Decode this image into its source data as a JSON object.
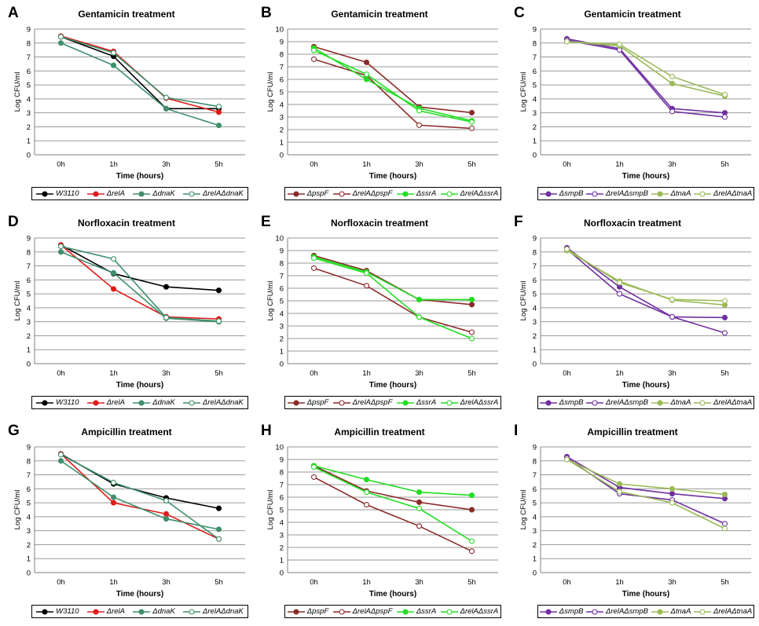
{
  "chart_data": [
    {
      "panel": "A",
      "type": "line",
      "title": "Gentamicin treatment",
      "xlabel": "Time (hours)",
      "ylabel": "Log CFU/ml",
      "categories": [
        "0h",
        "1h",
        "3h",
        "5h"
      ],
      "ylim": [
        0,
        9
      ],
      "yticks": [
        0,
        1,
        2,
        3,
        4,
        5,
        6,
        7,
        8,
        9
      ],
      "grid": true,
      "legend": "bottom",
      "series": [
        {
          "name": "W3110",
          "color": "#000000",
          "marker": "filled",
          "values": [
            8.45,
            7.05,
            3.3,
            3.3
          ]
        },
        {
          "name": "ΔrelA",
          "color": "#e01b1b",
          "marker": "filled",
          "values": [
            8.5,
            7.4,
            4.05,
            3.05
          ]
        },
        {
          "name": "ΔdnaK",
          "color": "#3f8f6b",
          "marker": "filled",
          "values": [
            8.0,
            6.4,
            3.3,
            2.1
          ]
        },
        {
          "name": "ΔrelAΔdnaK",
          "color": "#3f8f6b",
          "marker": "open",
          "values": [
            8.45,
            7.3,
            4.1,
            3.45
          ]
        }
      ]
    },
    {
      "panel": "B",
      "type": "line",
      "title": "Gentamicin treatment",
      "xlabel": "Time (hours)",
      "ylabel": "Log CFU/ml",
      "categories": [
        "0h",
        "1h",
        "3h",
        "5h"
      ],
      "ylim": [
        0,
        10
      ],
      "yticks": [
        0,
        1,
        2,
        3,
        4,
        5,
        6,
        7,
        8,
        9,
        10
      ],
      "grid": true,
      "legend": "bottom",
      "series": [
        {
          "name": "ΔpspF",
          "color": "#8b2b2b",
          "marker": "filled",
          "values": [
            8.6,
            7.35,
            3.8,
            3.35
          ]
        },
        {
          "name": "ΔrelAΔpspF",
          "color": "#8b2b2b",
          "marker": "open",
          "values": [
            7.6,
            6.3,
            2.35,
            2.1
          ]
        },
        {
          "name": "ΔssrA",
          "color": "#22dd22",
          "marker": "filled",
          "values": [
            8.5,
            6.0,
            3.7,
            2.7
          ]
        },
        {
          "name": "ΔrelAΔssrA",
          "color": "#22dd22",
          "marker": "open",
          "values": [
            8.3,
            6.4,
            3.5,
            2.6
          ]
        }
      ]
    },
    {
      "panel": "C",
      "type": "line",
      "title": "Gentamicin treatment",
      "xlabel": "Time (hours)",
      "ylabel": "Log CFU/ml",
      "categories": [
        "0h",
        "1h",
        "3h",
        "5h"
      ],
      "ylim": [
        0,
        9
      ],
      "yticks": [
        0,
        1,
        2,
        3,
        4,
        5,
        6,
        7,
        8,
        9
      ],
      "grid": true,
      "legend": "bottom",
      "series": [
        {
          "name": "ΔsmpB",
          "color": "#7030a0",
          "marker": "filled",
          "values": [
            8.3,
            7.6,
            3.3,
            3.0
          ]
        },
        {
          "name": "ΔrelAΔsmpB",
          "color": "#7030a0",
          "marker": "open",
          "values": [
            8.2,
            7.5,
            3.1,
            2.7
          ]
        },
        {
          "name": "ΔtnaA",
          "color": "#9bbb59",
          "marker": "filled",
          "values": [
            8.1,
            7.8,
            5.1,
            4.2
          ]
        },
        {
          "name": "ΔrelAΔtnaA",
          "color": "#9bbb59",
          "marker": "open",
          "values": [
            8.1,
            7.9,
            5.6,
            4.3
          ]
        }
      ]
    },
    {
      "panel": "D",
      "type": "line",
      "title": "Norfloxacin treatment",
      "xlabel": "Time (hours)",
      "ylabel": "Log CFU/ml",
      "categories": [
        "0h",
        "1h",
        "3h",
        "5h"
      ],
      "ylim": [
        0,
        9
      ],
      "yticks": [
        0,
        1,
        2,
        3,
        4,
        5,
        6,
        7,
        8,
        9
      ],
      "grid": true,
      "legend": "bottom",
      "series": [
        {
          "name": "W3110",
          "color": "#000000",
          "marker": "filled",
          "values": [
            8.5,
            6.45,
            5.5,
            5.25
          ]
        },
        {
          "name": "ΔrelA",
          "color": "#e01b1b",
          "marker": "filled",
          "values": [
            8.5,
            5.35,
            3.35,
            3.2
          ]
        },
        {
          "name": "ΔdnaK",
          "color": "#3f8f6b",
          "marker": "filled",
          "values": [
            8.0,
            6.5,
            3.25,
            3.0
          ]
        },
        {
          "name": "ΔrelAΔdnaK",
          "color": "#3f8f6b",
          "marker": "open",
          "values": [
            8.4,
            7.5,
            3.3,
            3.05
          ]
        }
      ]
    },
    {
      "panel": "E",
      "type": "line",
      "title": "Norfloxacin treatment",
      "xlabel": "Time (hours)",
      "ylabel": "Log CFU/ml",
      "categories": [
        "0h",
        "1h",
        "3h",
        "5h"
      ],
      "ylim": [
        0,
        10
      ],
      "yticks": [
        0,
        1,
        2,
        3,
        4,
        5,
        6,
        7,
        8,
        9,
        10
      ],
      "grid": true,
      "legend": "bottom",
      "series": [
        {
          "name": "ΔpspF",
          "color": "#8b2b2b",
          "marker": "filled",
          "values": [
            8.6,
            7.4,
            5.1,
            4.7
          ]
        },
        {
          "name": "ΔrelAΔpspF",
          "color": "#8b2b2b",
          "marker": "open",
          "values": [
            7.6,
            6.2,
            3.7,
            2.5
          ]
        },
        {
          "name": "ΔssrA",
          "color": "#22dd22",
          "marker": "filled",
          "values": [
            8.5,
            7.3,
            5.1,
            5.1
          ]
        },
        {
          "name": "ΔrelAΔssrA",
          "color": "#22dd22",
          "marker": "open",
          "values": [
            8.4,
            7.2,
            3.7,
            2.0
          ]
        }
      ]
    },
    {
      "panel": "F",
      "type": "line",
      "title": "Norfloxacin treatment",
      "xlabel": "Time (hours)",
      "ylabel": "Log CFU/ml",
      "categories": [
        "0h",
        "1h",
        "3h",
        "5h"
      ],
      "ylim": [
        0,
        9
      ],
      "yticks": [
        0,
        1,
        2,
        3,
        4,
        5,
        6,
        7,
        8,
        9
      ],
      "grid": true,
      "legend": "bottom",
      "series": [
        {
          "name": "ΔsmpB",
          "color": "#7030a0",
          "marker": "filled",
          "values": [
            8.3,
            5.5,
            3.35,
            3.3
          ]
        },
        {
          "name": "ΔrelAΔsmpB",
          "color": "#7030a0",
          "marker": "open",
          "values": [
            8.2,
            5.0,
            3.35,
            2.2
          ]
        },
        {
          "name": "ΔtnaA",
          "color": "#9bbb59",
          "marker": "filled",
          "values": [
            8.1,
            5.9,
            4.55,
            4.2
          ]
        },
        {
          "name": "ΔrelAΔtnaA",
          "color": "#9bbb59",
          "marker": "open",
          "values": [
            8.2,
            5.8,
            4.6,
            4.5
          ]
        }
      ]
    },
    {
      "panel": "G",
      "type": "line",
      "title": "Ampicillin treatment",
      "xlabel": "Time (hours)",
      "ylabel": "Log CFU/ml",
      "categories": [
        "0h",
        "1h",
        "3h",
        "5h"
      ],
      "ylim": [
        0,
        9
      ],
      "yticks": [
        0,
        1,
        2,
        3,
        4,
        5,
        6,
        7,
        8,
        9
      ],
      "grid": true,
      "legend": "bottom",
      "series": [
        {
          "name": "W3110",
          "color": "#000000",
          "marker": "filled",
          "values": [
            8.5,
            6.35,
            5.35,
            4.6
          ]
        },
        {
          "name": "ΔrelA",
          "color": "#e01b1b",
          "marker": "filled",
          "values": [
            8.5,
            5.0,
            4.2,
            2.4
          ]
        },
        {
          "name": "ΔdnaK",
          "color": "#3f8f6b",
          "marker": "filled",
          "values": [
            8.0,
            5.4,
            3.85,
            3.1
          ]
        },
        {
          "name": "ΔrelAΔdnaK",
          "color": "#3f8f6b",
          "marker": "open",
          "values": [
            8.45,
            6.45,
            5.15,
            2.4
          ]
        }
      ]
    },
    {
      "panel": "H",
      "type": "line",
      "title": "Ampicillin treatment",
      "xlabel": "Time (hours)",
      "ylabel": "Log CFU/ml",
      "categories": [
        "0h",
        "1h",
        "3h",
        "5h"
      ],
      "ylim": [
        0,
        10
      ],
      "yticks": [
        0,
        1,
        2,
        3,
        4,
        5,
        6,
        7,
        8,
        9,
        10
      ],
      "grid": true,
      "legend": "bottom",
      "series": [
        {
          "name": "ΔpspF",
          "color": "#8b2b2b",
          "marker": "filled",
          "values": [
            8.5,
            6.5,
            5.6,
            5.0
          ]
        },
        {
          "name": "ΔrelAΔpspF",
          "color": "#8b2b2b",
          "marker": "open",
          "values": [
            7.6,
            5.4,
            3.7,
            1.7
          ]
        },
        {
          "name": "ΔssrA",
          "color": "#22dd22",
          "marker": "filled",
          "values": [
            8.5,
            7.4,
            6.4,
            6.15
          ]
        },
        {
          "name": "ΔrelAΔssrA",
          "color": "#22dd22",
          "marker": "open",
          "values": [
            8.4,
            6.4,
            5.1,
            2.5
          ]
        }
      ]
    },
    {
      "panel": "I",
      "type": "line",
      "title": "Ampicillin treatment",
      "xlabel": "Time (hours)",
      "ylabel": "Log CFU/ml",
      "categories": [
        "0h",
        "1h",
        "3h",
        "5h"
      ],
      "ylim": [
        0,
        9
      ],
      "yticks": [
        0,
        1,
        2,
        3,
        4,
        5,
        6,
        7,
        8,
        9
      ],
      "grid": true,
      "legend": "bottom",
      "series": [
        {
          "name": "ΔsmpB",
          "color": "#7030a0",
          "marker": "filled",
          "values": [
            8.3,
            6.1,
            5.65,
            5.3
          ]
        },
        {
          "name": "ΔrelAΔsmpB",
          "color": "#7030a0",
          "marker": "open",
          "values": [
            8.2,
            5.65,
            5.2,
            3.5
          ]
        },
        {
          "name": "ΔtnaA",
          "color": "#9bbb59",
          "marker": "filled",
          "values": [
            8.1,
            6.35,
            6.0,
            5.6
          ]
        },
        {
          "name": "ΔrelAΔtnaA",
          "color": "#9bbb59",
          "marker": "open",
          "values": [
            8.1,
            5.8,
            5.0,
            3.15
          ]
        }
      ]
    }
  ]
}
